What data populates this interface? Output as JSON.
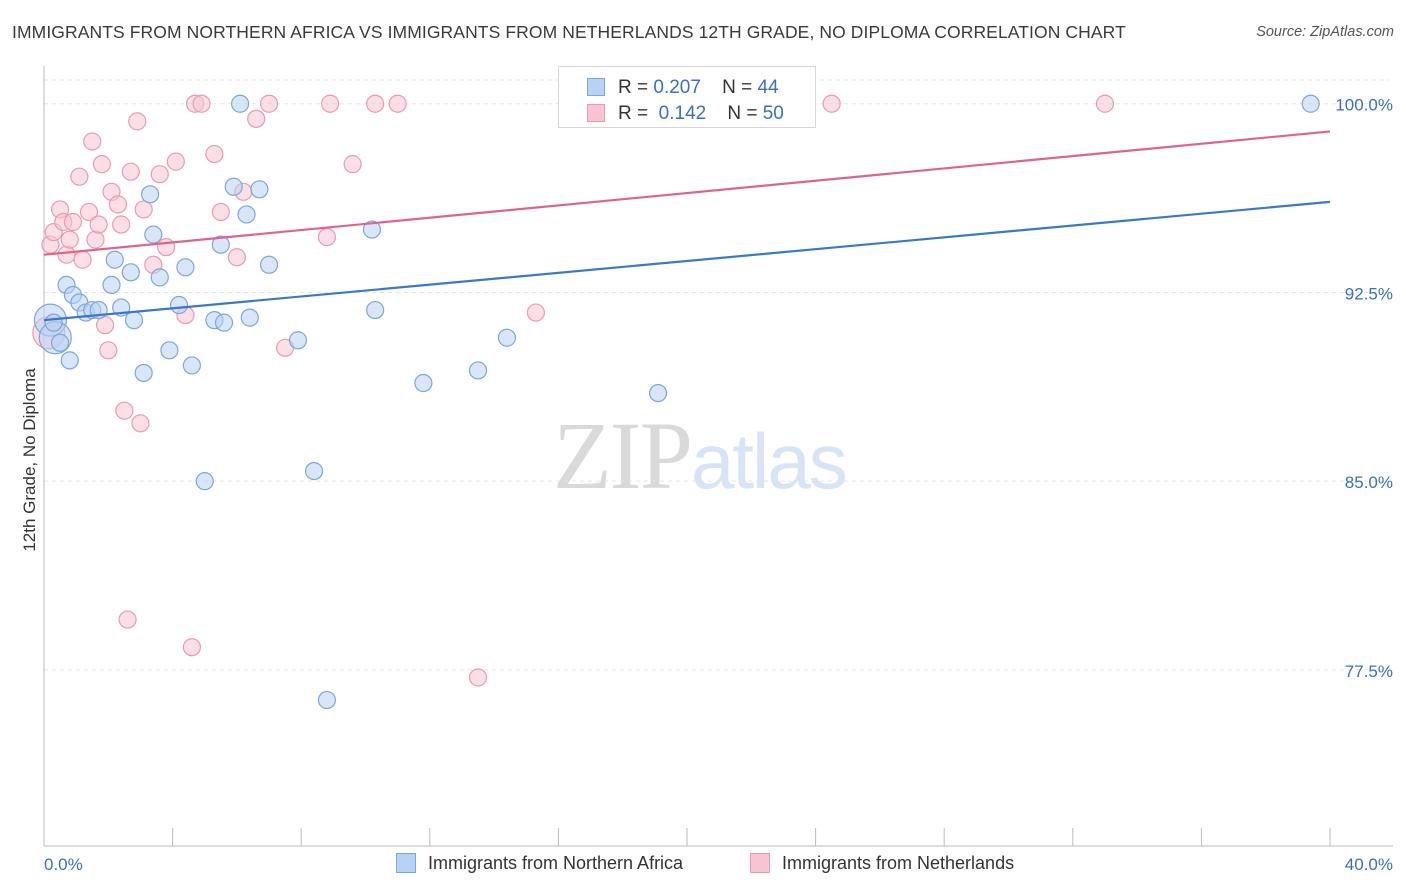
{
  "title": "IMMIGRANTS FROM NORTHERN AFRICA VS IMMIGRANTS FROM NETHERLANDS 12TH GRADE, NO DIPLOMA CORRELATION CHART",
  "source": "Source: ZipAtlas.com",
  "watermark": {
    "zip": "ZIP",
    "atlas": "atlas"
  },
  "legend": {
    "r_label": "R =",
    "n_label": "N =",
    "series_a": {
      "r": "0.207",
      "n": "44"
    },
    "series_b": {
      "r": "0.142",
      "n": "50"
    }
  },
  "colors": {
    "series_a_fill": "#b8d2f3",
    "series_a_stroke": "#7ea6dc",
    "series_a_line": "#3a78c9",
    "series_b_fill": "#f8c4d3",
    "series_b_stroke": "#eb9ab2",
    "series_b_line": "#e0628e",
    "axis_label": "#3a6fc4",
    "grid": "#e3e3e3"
  },
  "chart_data": {
    "type": "scatter",
    "title": "IMMIGRANTS FROM NORTHERN AFRICA VS IMMIGRANTS FROM NETHERLANDS 12TH GRADE, NO DIPLOMA CORRELATION CHART",
    "xlabel": "",
    "ylabel": "12th Grade, No Diploma",
    "xlim": [
      0,
      40
    ],
    "ylim": [
      70.5,
      101.5
    ],
    "x_tick_labels": [
      "0.0%",
      "40.0%"
    ],
    "y_ticks": [
      77.5,
      85.0,
      92.5,
      100.0
    ],
    "y_tick_labels": [
      "77.5%",
      "85.0%",
      "92.5%",
      "100.0%"
    ],
    "grid": "horizontal dashed",
    "series": [
      {
        "name": "Immigrants from Northern Africa",
        "r": 0.207,
        "n": 44,
        "trend": [
          [
            0,
            91.4
          ],
          [
            40,
            96.1
          ]
        ],
        "points": [
          [
            0.3,
            91.3
          ],
          [
            0.5,
            90.5
          ],
          [
            0.7,
            92.8
          ],
          [
            0.8,
            89.8
          ],
          [
            0.9,
            92.4
          ],
          [
            1.1,
            92.1
          ],
          [
            1.3,
            91.7
          ],
          [
            1.5,
            91.8
          ],
          [
            1.7,
            91.8
          ],
          [
            2.2,
            93.8
          ],
          [
            2.1,
            92.8
          ],
          [
            2.4,
            91.9
          ],
          [
            2.7,
            93.3
          ],
          [
            2.8,
            91.4
          ],
          [
            3.1,
            89.3
          ],
          [
            3.3,
            96.4
          ],
          [
            3.4,
            94.8
          ],
          [
            3.6,
            93.1
          ],
          [
            3.9,
            90.2
          ],
          [
            4.2,
            92.0
          ],
          [
            4.4,
            93.5
          ],
          [
            4.6,
            89.6
          ],
          [
            5.0,
            85.0
          ],
          [
            5.3,
            91.4
          ],
          [
            5.5,
            94.4
          ],
          [
            5.6,
            91.3
          ],
          [
            5.9,
            96.7
          ],
          [
            6.1,
            100.0
          ],
          [
            6.3,
            95.6
          ],
          [
            6.4,
            91.5
          ],
          [
            6.7,
            96.6
          ],
          [
            7.0,
            93.6
          ],
          [
            7.9,
            90.6
          ],
          [
            8.4,
            85.4
          ],
          [
            8.8,
            76.3
          ],
          [
            10.2,
            95.0
          ],
          [
            10.3,
            91.8
          ],
          [
            11.8,
            88.9
          ],
          [
            13.5,
            89.4
          ],
          [
            14.4,
            90.7
          ],
          [
            19.1,
            88.5
          ],
          [
            39.4,
            100.0
          ]
        ],
        "large_points": [
          [
            0.2,
            91.4
          ],
          [
            0.35,
            90.7
          ]
        ]
      },
      {
        "name": "Immigrants from Netherlands",
        "r": 0.142,
        "n": 50,
        "trend": [
          [
            0,
            94.0
          ],
          [
            40,
            98.9
          ]
        ],
        "points": [
          [
            0.2,
            94.4
          ],
          [
            0.3,
            94.9
          ],
          [
            0.5,
            95.8
          ],
          [
            0.6,
            95.3
          ],
          [
            0.7,
            94.0
          ],
          [
            0.8,
            94.6
          ],
          [
            0.9,
            95.3
          ],
          [
            1.1,
            97.1
          ],
          [
            1.2,
            93.8
          ],
          [
            1.4,
            95.7
          ],
          [
            1.5,
            98.5
          ],
          [
            1.6,
            94.6
          ],
          [
            1.7,
            95.2
          ],
          [
            1.8,
            97.6
          ],
          [
            1.9,
            91.2
          ],
          [
            2.0,
            90.2
          ],
          [
            2.1,
            96.5
          ],
          [
            2.3,
            96.0
          ],
          [
            2.4,
            95.2
          ],
          [
            2.5,
            87.8
          ],
          [
            2.6,
            79.5
          ],
          [
            2.7,
            97.3
          ],
          [
            2.9,
            99.3
          ],
          [
            3.0,
            87.3
          ],
          [
            3.1,
            95.8
          ],
          [
            3.4,
            93.6
          ],
          [
            3.6,
            97.2
          ],
          [
            3.8,
            94.3
          ],
          [
            4.1,
            97.7
          ],
          [
            4.4,
            91.6
          ],
          [
            4.6,
            78.4
          ],
          [
            4.7,
            100.0
          ],
          [
            4.9,
            100.0
          ],
          [
            5.3,
            98.0
          ],
          [
            5.5,
            95.7
          ],
          [
            6.0,
            93.9
          ],
          [
            6.2,
            96.5
          ],
          [
            6.6,
            99.4
          ],
          [
            7.0,
            100.0
          ],
          [
            7.5,
            90.3
          ],
          [
            8.8,
            94.7
          ],
          [
            8.9,
            100.0
          ],
          [
            9.6,
            97.6
          ],
          [
            10.3,
            100.0
          ],
          [
            11.0,
            100.0
          ],
          [
            13.5,
            77.2
          ],
          [
            15.3,
            91.7
          ],
          [
            24.5,
            100.0
          ],
          [
            33.0,
            100.0
          ]
        ],
        "large_points": [
          [
            0.15,
            90.9
          ]
        ]
      }
    ]
  },
  "bottom_legend": {
    "series_a": "Immigrants from Northern Africa",
    "series_b": "Immigrants from Netherlands"
  }
}
